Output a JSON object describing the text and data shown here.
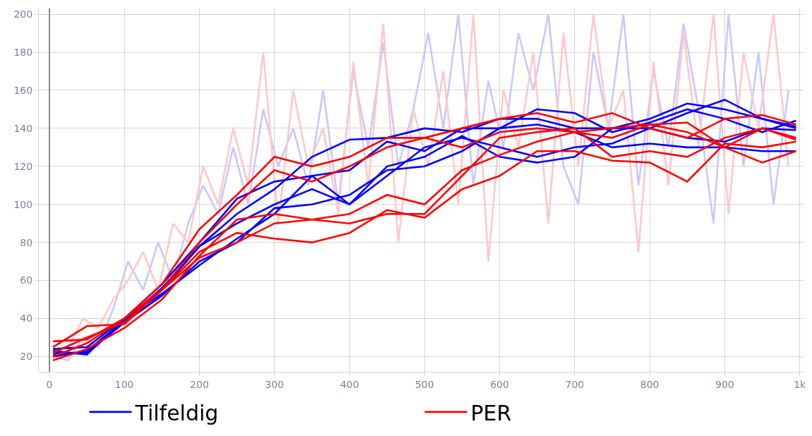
{
  "chart_data": {
    "type": "line",
    "x": [
      5,
      50,
      100,
      150,
      200,
      250,
      300,
      350,
      400,
      450,
      500,
      550,
      600,
      650,
      700,
      750,
      800,
      850,
      900,
      950,
      995
    ],
    "series": [
      {
        "color": "#c8c8ff",
        "x": [
          5,
          25,
          45,
          65,
          85,
          105,
          125,
          145,
          165,
          185,
          205,
          225,
          245,
          265,
          285,
          305,
          325,
          345,
          365,
          385,
          405,
          425,
          445,
          465,
          485,
          505,
          525,
          545,
          565,
          585,
          605,
          625,
          645,
          665,
          685,
          705,
          725,
          745,
          765,
          785,
          805,
          825,
          845,
          865,
          885,
          905,
          925,
          945,
          965,
          985
        ],
        "values": [
          20,
          18,
          30,
          25,
          45,
          70,
          55,
          80,
          60,
          90,
          110,
          95,
          130,
          100,
          150,
          120,
          140,
          110,
          160,
          100,
          170,
          130,
          185,
          120,
          150,
          190,
          140,
          200,
          110,
          165,
          130,
          190,
          160,
          200,
          120,
          100,
          180,
          140,
          200,
          110,
          170,
          130,
          195,
          150,
          90,
          200,
          120,
          180,
          100,
          160
        ]
      },
      {
        "color": "#ffc8c8",
        "x": [
          5,
          25,
          45,
          65,
          85,
          105,
          125,
          145,
          165,
          185,
          205,
          225,
          245,
          265,
          285,
          305,
          325,
          345,
          365,
          385,
          405,
          425,
          445,
          465,
          485,
          505,
          525,
          545,
          565,
          585,
          605,
          625,
          645,
          665,
          685,
          705,
          725,
          745,
          765,
          785,
          805,
          825,
          845,
          865,
          885,
          905,
          925,
          945,
          965,
          985
        ],
        "values": [
          22,
          25,
          40,
          35,
          50,
          60,
          75,
          55,
          90,
          80,
          120,
          100,
          140,
          110,
          180,
          90,
          160,
          120,
          140,
          95,
          175,
          110,
          195,
          80,
          150,
          120,
          170,
          100,
          200,
          70,
          160,
          130,
          180,
          90,
          190,
          120,
          200,
          140,
          160,
          75,
          175,
          110,
          190,
          130,
          200,
          95,
          180,
          140,
          200,
          120
        ]
      },
      {
        "name": "Tilfeldig",
        "color": "#0000ff",
        "values": [
          22,
          22,
          38,
          55,
          78,
          95,
          108,
          125,
          134,
          135,
          140,
          138,
          145,
          145,
          140,
          140,
          140,
          148,
          155,
          145,
          140
        ]
      },
      {
        "color": "#0000ff",
        "values": [
          24,
          25,
          40,
          58,
          80,
          103,
          112,
          115,
          118,
          133,
          128,
          140,
          140,
          150,
          148,
          138,
          143,
          150,
          145,
          138,
          144
        ]
      },
      {
        "color": "#0000ff",
        "values": [
          20,
          23,
          39,
          56,
          78,
          90,
          100,
          108,
          100,
          120,
          125,
          136,
          125,
          122,
          125,
          140,
          145,
          153,
          150,
          145,
          141
        ]
      },
      {
        "color": "#0000ff",
        "values": [
          21,
          22,
          38,
          52,
          70,
          80,
          98,
          100,
          105,
          118,
          120,
          128,
          140,
          142,
          138,
          130,
          132,
          130,
          130,
          128,
          128
        ]
      },
      {
        "color": "#0000ff",
        "values": [
          23,
          21,
          40,
          53,
          68,
          82,
          95,
          115,
          100,
          115,
          130,
          135,
          130,
          125,
          130,
          132,
          140,
          135,
          133,
          140,
          139
        ]
      },
      {
        "name": "PER",
        "color": "#ff0000",
        "values": [
          28,
          29,
          40,
          58,
          87,
          105,
          125,
          120,
          125,
          135,
          135,
          140,
          145,
          148,
          143,
          148,
          140,
          135,
          145,
          147,
          142
        ]
      },
      {
        "color": "#ff0000",
        "values": [
          22,
          30,
          38,
          55,
          80,
          100,
          118,
          112,
          120,
          130,
          135,
          130,
          138,
          140,
          138,
          140,
          142,
          143,
          130,
          140,
          135
        ]
      },
      {
        "color": "#ff0000",
        "values": [
          18,
          24,
          35,
          50,
          73,
          92,
          95,
          92,
          90,
          95,
          95,
          115,
          135,
          138,
          140,
          125,
          128,
          125,
          135,
          140,
          134
        ]
      },
      {
        "color": "#ff0000",
        "values": [
          20,
          27,
          40,
          55,
          75,
          85,
          82,
          80,
          85,
          97,
          93,
          108,
          115,
          128,
          128,
          123,
          122,
          112,
          132,
          130,
          133
        ]
      },
      {
        "color": "#ff0000",
        "values": [
          25,
          36,
          37,
          55,
          72,
          80,
          90,
          92,
          95,
          105,
          100,
          118,
          126,
          133,
          138,
          135,
          142,
          138,
          130,
          122,
          128
        ]
      }
    ],
    "xlim": [
      -14,
      1005
    ],
    "xticks": [
      0,
      100,
      200,
      300,
      400,
      500,
      600,
      700,
      800,
      900,
      {
        "value": 1000,
        "label": "1k"
      }
    ],
    "ylim": [
      12,
      203
    ],
    "yticks": [
      20,
      40,
      60,
      80,
      100,
      120,
      140,
      160,
      180,
      200
    ],
    "grid": true,
    "legend": "bottom",
    "line_style": "solid",
    "marker": "none"
  }
}
